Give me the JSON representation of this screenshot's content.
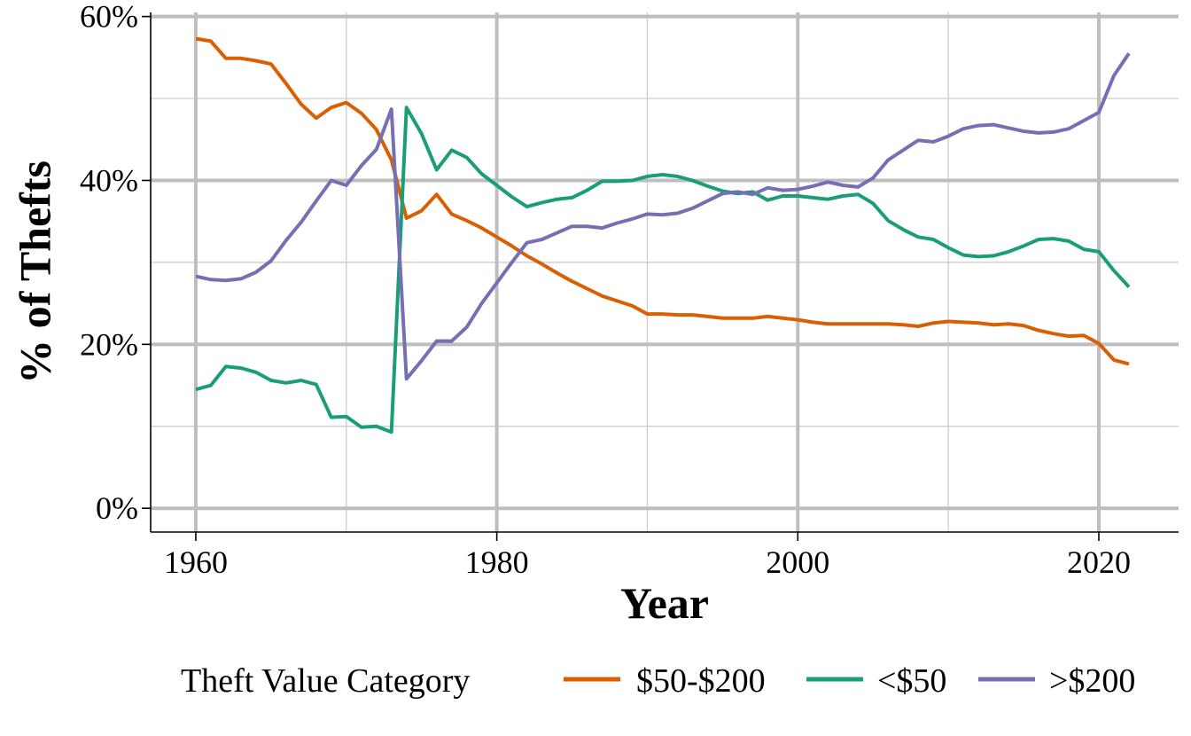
{
  "chart_data": {
    "type": "line",
    "title": "",
    "xlabel": "Year",
    "ylabel": "% of Thefts",
    "xlim": [
      1957,
      2025.3
    ],
    "ylim": [
      -2.9,
      60.5
    ],
    "x_ticks": [
      1960,
      1980,
      2000,
      2020
    ],
    "x_tick_labels": [
      "1960",
      "1980",
      "2000",
      "2020"
    ],
    "y_ticks": [
      0,
      20,
      40,
      60
    ],
    "y_tick_labels": [
      "0%",
      "20%",
      "40%",
      "60%"
    ],
    "grid": true,
    "legend": {
      "title": "Theft Value Category",
      "position": "bottom"
    },
    "x": [
      1960,
      1961,
      1962,
      1963,
      1964,
      1965,
      1966,
      1967,
      1968,
      1969,
      1970,
      1971,
      1972,
      1973,
      1974,
      1975,
      1976,
      1977,
      1978,
      1979,
      1980,
      1981,
      1982,
      1983,
      1984,
      1985,
      1986,
      1987,
      1988,
      1989,
      1990,
      1991,
      1992,
      1993,
      1994,
      1995,
      1996,
      1997,
      1998,
      1999,
      2000,
      2001,
      2002,
      2003,
      2004,
      2005,
      2006,
      2007,
      2008,
      2009,
      2010,
      2011,
      2012,
      2013,
      2014,
      2015,
      2016,
      2017,
      2018,
      2019,
      2020,
      2021,
      2022
    ],
    "series": [
      {
        "name": "$50-$200",
        "color": "#d95f02",
        "values": [
          57.3,
          57.0,
          54.9,
          54.9,
          54.6,
          54.2,
          51.8,
          49.3,
          47.6,
          48.9,
          49.5,
          48.2,
          46.2,
          42.5,
          35.4,
          36.3,
          38.3,
          35.9,
          35.1,
          34.2,
          33.1,
          32.0,
          30.8,
          29.8,
          28.7,
          27.7,
          26.8,
          25.9,
          25.3,
          24.7,
          23.7,
          23.7,
          23.6,
          23.6,
          23.4,
          23.2,
          23.2,
          23.2,
          23.4,
          23.2,
          23.0,
          22.7,
          22.5,
          22.5,
          22.5,
          22.5,
          22.5,
          22.4,
          22.2,
          22.6,
          22.8,
          22.7,
          22.6,
          22.4,
          22.5,
          22.3,
          21.7,
          21.3,
          21.0,
          21.1,
          20.1,
          18.1,
          17.6
        ]
      },
      {
        "name": "<$50",
        "color": "#1b9e77",
        "values": [
          14.5,
          15.0,
          17.3,
          17.1,
          16.6,
          15.6,
          15.3,
          15.6,
          15.1,
          11.1,
          11.2,
          9.9,
          10.0,
          9.3,
          48.9,
          45.7,
          41.3,
          43.7,
          42.8,
          40.8,
          39.4,
          38.0,
          36.8,
          37.3,
          37.7,
          37.9,
          38.8,
          39.9,
          39.9,
          40.0,
          40.5,
          40.7,
          40.5,
          40.0,
          39.3,
          38.7,
          38.4,
          38.6,
          37.6,
          38.1,
          38.1,
          37.9,
          37.7,
          38.1,
          38.3,
          37.2,
          35.1,
          34.0,
          33.1,
          32.8,
          31.8,
          30.9,
          30.7,
          30.8,
          31.3,
          32.0,
          32.8,
          32.9,
          32.6,
          31.6,
          31.3,
          29.0,
          27.0
        ]
      },
      {
        "name": ">$200",
        "color": "#7570b3",
        "values": [
          28.3,
          27.9,
          27.8,
          28.0,
          28.8,
          30.2,
          32.7,
          34.9,
          37.5,
          40.0,
          39.4,
          41.8,
          43.8,
          48.7,
          15.8,
          18.0,
          20.4,
          20.4,
          22.1,
          25.0,
          27.5,
          30.0,
          32.4,
          32.8,
          33.6,
          34.4,
          34.4,
          34.2,
          34.8,
          35.3,
          35.9,
          35.8,
          36.0,
          36.6,
          37.5,
          38.4,
          38.6,
          38.3,
          39.1,
          38.8,
          38.9,
          39.3,
          39.8,
          39.4,
          39.2,
          40.3,
          42.5,
          43.7,
          44.9,
          44.7,
          45.4,
          46.3,
          46.7,
          46.8,
          46.4,
          46.0,
          45.8,
          45.9,
          46.3,
          47.3,
          48.3,
          52.8,
          55.5
        ]
      }
    ]
  }
}
